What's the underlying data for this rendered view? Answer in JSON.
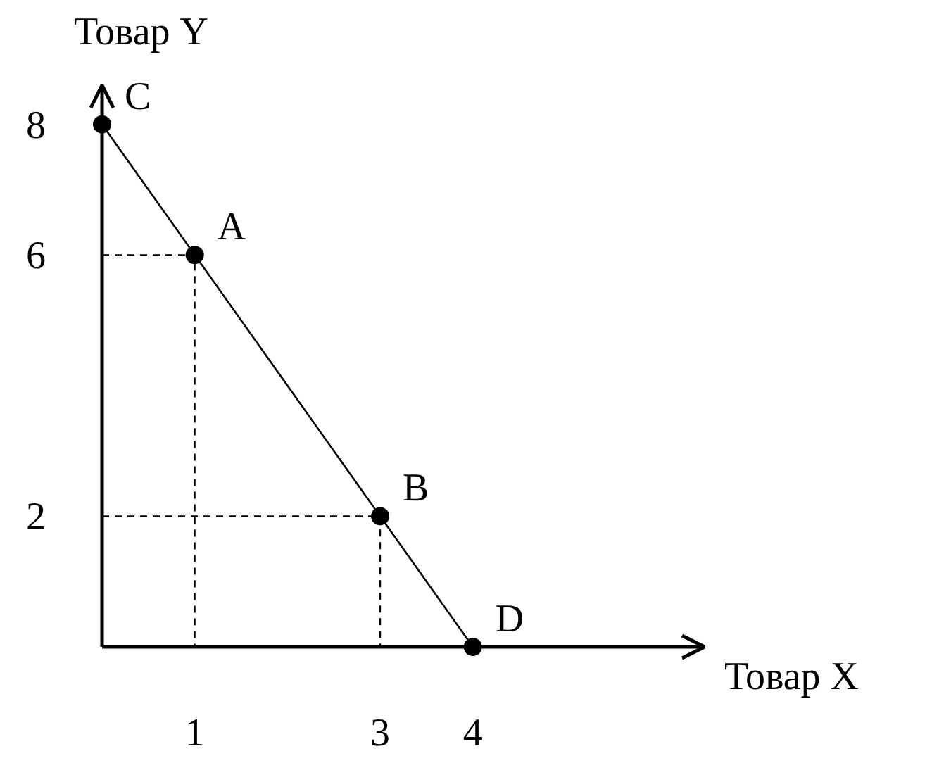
{
  "chart_data": {
    "type": "line",
    "xlabel": "Товар X",
    "ylabel": "Товар Y",
    "xlim": [
      0,
      6.5
    ],
    "ylim": [
      0,
      8.6
    ],
    "xticks": [
      1,
      3,
      4
    ],
    "yticks": [
      2,
      6,
      8
    ],
    "grid": false,
    "series": [
      {
        "x": [
          0,
          1,
          3,
          4
        ],
        "values": [
          8,
          6,
          2,
          0
        ],
        "color": "#000000",
        "marker": "circle",
        "line_style": "solid"
      },
      {
        "x": [
          0,
          1,
          1
        ],
        "values": [
          6,
          6,
          0
        ],
        "color": "#000000",
        "marker": "none",
        "line_style": "dashed"
      },
      {
        "x": [
          0,
          3,
          3
        ],
        "values": [
          2,
          2,
          0
        ],
        "color": "#000000",
        "marker": "none",
        "line_style": "dashed"
      }
    ],
    "annotations": [
      {
        "text": "C",
        "x": 0,
        "y": 8
      },
      {
        "text": "A",
        "x": 1,
        "y": 6
      },
      {
        "text": "B",
        "x": 3,
        "y": 2
      },
      {
        "text": "D",
        "x": 4,
        "y": 0
      }
    ]
  }
}
